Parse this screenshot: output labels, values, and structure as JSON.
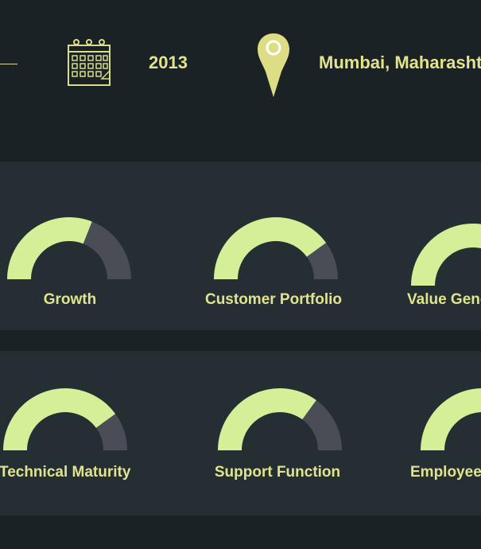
{
  "header": {
    "year": "2013",
    "location": "Mumbai, Maharashtra",
    "calendar_icon": "calendar-icon",
    "pin_icon": "map-pin-icon"
  },
  "colors": {
    "background": "#1a2226",
    "panel": "#252f33",
    "accent": "#e1e38d",
    "gauge_fill": "#d5ee98",
    "gauge_track": "#4a4d53"
  },
  "gauges_row1": [
    {
      "label": "Growth",
      "value": 0.62
    },
    {
      "label": "Customer Portfolio",
      "value": 0.8
    },
    {
      "label": "Value Generation",
      "value": 0.75
    }
  ],
  "gauges_row2": [
    {
      "label": "Technical Maturity",
      "value": 0.8
    },
    {
      "label": "Support Function",
      "value": 0.7
    },
    {
      "label": "Employee Satisfaction",
      "value": 0.75
    }
  ]
}
